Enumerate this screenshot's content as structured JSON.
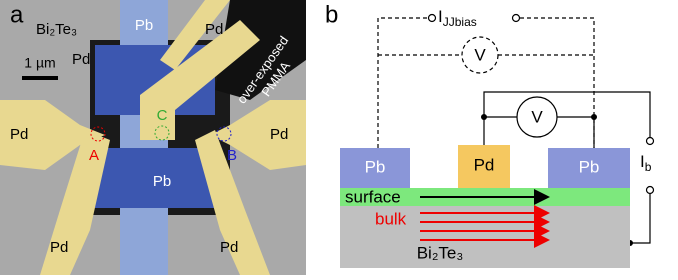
{
  "panel_a": {
    "label": "a",
    "substrate": "Bi₂Te₃",
    "pb_top": "Pb",
    "pd_top_left": "Pd",
    "pd_top_right": "Pd",
    "scale_bar": "1 µm",
    "resist": [
      "over-exposed",
      "PMMA"
    ],
    "pd_left": "Pd",
    "pd_right": "Pd",
    "probe_c": "C",
    "probe_a": "A",
    "probe_b": "B",
    "pb_center": "Pb",
    "pd_bottom_left": "Pd",
    "pd_bottom_right": "Pd"
  },
  "panel_b": {
    "label": "b",
    "i_jj": {
      "main": "I",
      "sub": "JJbias"
    },
    "voltmeter_top": "V",
    "voltmeter": "V",
    "i_b": {
      "main": "I",
      "sub": "b"
    },
    "pb_left": "Pb",
    "pd": "Pd",
    "pb_right": "Pb",
    "surface": "surface",
    "bulk": "bulk",
    "substrate": "Bi₂Te₃"
  }
}
